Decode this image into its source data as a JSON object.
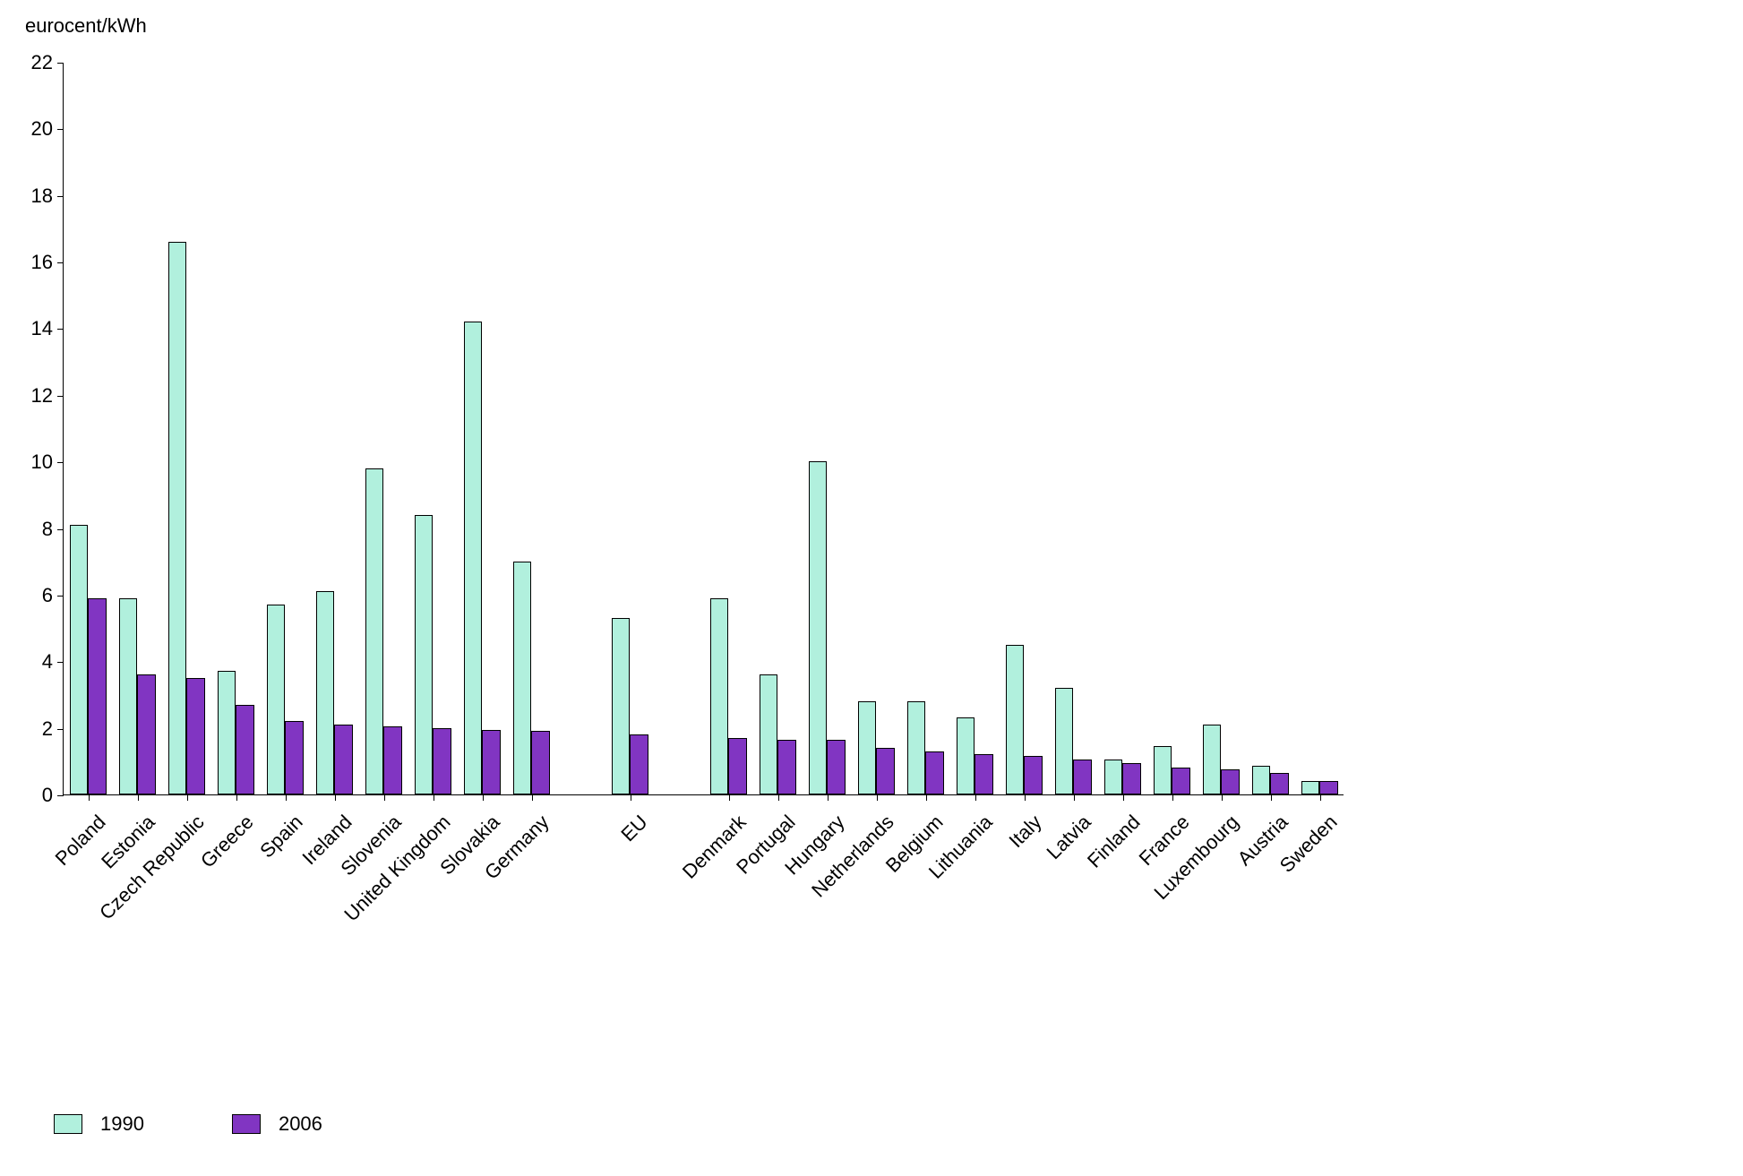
{
  "chart": {
    "type": "bar",
    "y_axis_title": "eurocent/kWh",
    "ylim": [
      0,
      22
    ],
    "ytick_step": 2,
    "yticks": [
      0,
      2,
      4,
      6,
      8,
      10,
      12,
      14,
      16,
      18,
      20,
      22
    ],
    "grid": false,
    "background_color": "#ffffff",
    "axis_color": "#000000",
    "text_color": "#000000",
    "x_label_rotation_deg": -45,
    "label_fontsize": 22,
    "series": [
      {
        "name": "1990",
        "color": "#b1f0dd"
      },
      {
        "name": "2006",
        "color": "#8135c2"
      }
    ],
    "categories": [
      {
        "name": "Poland",
        "values": [
          8.1,
          5.9
        ]
      },
      {
        "name": "Estonia",
        "values": [
          5.9,
          3.6
        ]
      },
      {
        "name": "Czech Republic",
        "values": [
          16.6,
          3.5
        ]
      },
      {
        "name": "Greece",
        "values": [
          3.7,
          2.7
        ]
      },
      {
        "name": "Spain",
        "values": [
          5.7,
          2.2
        ]
      },
      {
        "name": "Ireland",
        "values": [
          6.1,
          2.1
        ]
      },
      {
        "name": "Slovenia",
        "values": [
          9.8,
          2.05
        ]
      },
      {
        "name": "United Kingdom",
        "values": [
          8.4,
          2.0
        ]
      },
      {
        "name": "Slovakia",
        "values": [
          14.2,
          1.95
        ]
      },
      {
        "name": "Germany",
        "values": [
          7.0,
          1.9
        ]
      },
      {
        "name": "_gap",
        "values": null
      },
      {
        "name": "EU",
        "values": [
          5.3,
          1.8
        ]
      },
      {
        "name": "_gap",
        "values": null
      },
      {
        "name": "Denmark",
        "values": [
          5.9,
          1.7
        ]
      },
      {
        "name": "Portugal",
        "values": [
          3.6,
          1.65
        ]
      },
      {
        "name": "Hungary",
        "values": [
          10.0,
          1.65
        ]
      },
      {
        "name": "Netherlands",
        "values": [
          2.8,
          1.4
        ]
      },
      {
        "name": "Belgium",
        "values": [
          2.8,
          1.3
        ]
      },
      {
        "name": "Lithuania",
        "values": [
          2.3,
          1.2
        ]
      },
      {
        "name": "Italy",
        "values": [
          4.5,
          1.15
        ]
      },
      {
        "name": "Latvia",
        "values": [
          3.2,
          1.05
        ]
      },
      {
        "name": "Finland",
        "values": [
          1.05,
          0.95
        ]
      },
      {
        "name": "France",
        "values": [
          1.45,
          0.8
        ]
      },
      {
        "name": "Luxembourg",
        "values": [
          2.1,
          0.75
        ]
      },
      {
        "name": "Austria",
        "values": [
          0.85,
          0.65
        ]
      },
      {
        "name": "Sweden",
        "values": [
          0.4,
          0.4
        ]
      }
    ],
    "legend_position": "bottom-left"
  }
}
